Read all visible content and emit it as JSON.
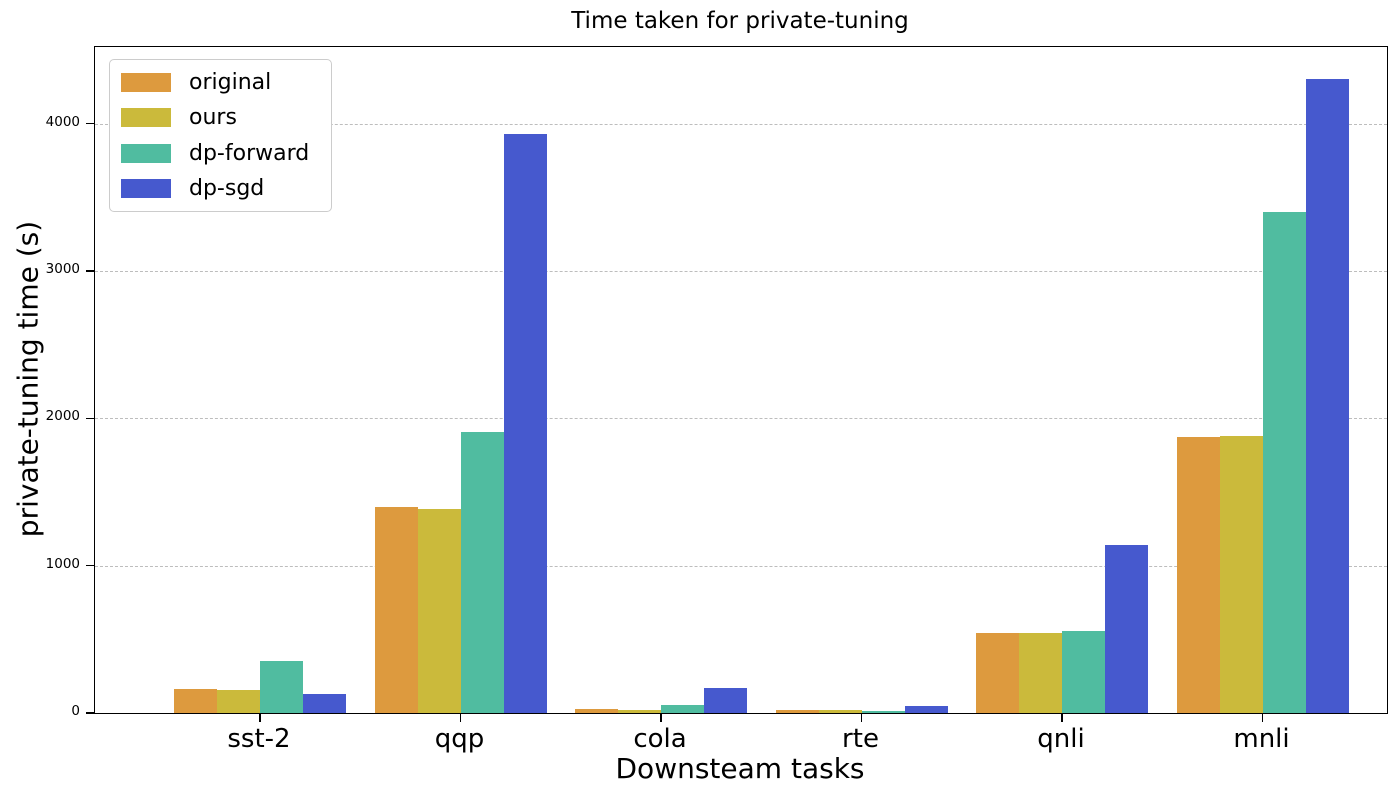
{
  "chart_data": {
    "type": "bar",
    "title": "Time taken for private-tuning",
    "xlabel": "Downsteam tasks",
    "ylabel": "private-tuning time (s)",
    "categories": [
      "sst-2",
      "qqp",
      "cola",
      "rte",
      "qnli",
      "mnli"
    ],
    "series": [
      {
        "name": "original",
        "color": "#DD9A3E",
        "values": [
          160,
          1395,
          27,
          22,
          545,
          1870
        ]
      },
      {
        "name": "ours",
        "color": "#CBBA3B",
        "values": [
          158,
          1385,
          22,
          22,
          543,
          1880
        ]
      },
      {
        "name": "dp-forward",
        "color": "#50BCA0",
        "values": [
          355,
          1905,
          55,
          12,
          557,
          3400
        ]
      },
      {
        "name": "dp-sgd",
        "color": "#4659CE",
        "values": [
          130,
          3930,
          172,
          48,
          1143,
          4300
        ]
      }
    ],
    "yticks": [
      0,
      1000,
      2000,
      3000,
      4000
    ],
    "ylim": [
      0,
      4520
    ],
    "grid": "horizontal-dashed",
    "grid_color": "#bdbdbd",
    "legend_position": "upper-left",
    "legend_entries": [
      "original",
      "ours",
      "dp-forward",
      "dp-sgd"
    ]
  }
}
